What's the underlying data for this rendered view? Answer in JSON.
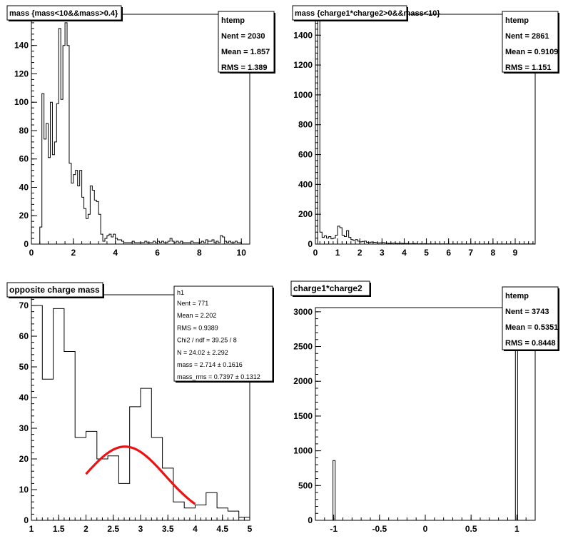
{
  "chart_data": [
    {
      "type": "histogram",
      "title": "mass {mass<10&&mass>0.4}",
      "stats": {
        "name": "htemp",
        "rows": [
          [
            "Nent",
            "2030"
          ],
          [
            "Mean",
            "1.857"
          ],
          [
            "RMS",
            "1.389"
          ]
        ]
      },
      "xlim": [
        0,
        10.4
      ],
      "ylim": [
        0,
        162
      ],
      "xticks": [
        0,
        2,
        4,
        6,
        8,
        10
      ],
      "xtick_labels": [
        "0",
        "2",
        "4",
        "6",
        "8",
        "10"
      ],
      "yticks": [
        0,
        20,
        40,
        60,
        80,
        100,
        120,
        140,
        160
      ],
      "ytick_labels": [
        "0",
        "20",
        "40",
        "60",
        "80",
        "100",
        "120",
        "140",
        "160"
      ],
      "bin_start": 0.4,
      "bin_width": 0.1,
      "values": [
        12,
        106,
        74,
        85,
        61,
        100,
        63,
        72,
        99,
        152,
        102,
        140,
        156,
        140,
        57,
        43,
        49,
        52,
        41,
        52,
        33,
        25,
        18,
        21,
        41,
        38,
        31,
        30,
        21,
        7,
        2,
        4,
        6,
        7,
        5,
        7,
        4,
        3,
        3,
        2,
        1,
        1,
        1,
        1,
        2,
        1,
        1,
        1,
        1,
        1,
        2,
        1,
        1,
        1,
        2,
        1,
        2,
        1,
        2,
        1,
        1,
        2,
        4,
        2,
        1,
        2,
        1,
        2,
        1,
        1,
        1,
        1,
        2,
        1,
        1,
        1,
        1,
        2,
        1,
        3,
        2,
        2,
        3,
        1,
        2,
        1,
        6,
        5,
        2,
        1,
        2,
        1,
        1,
        2,
        1,
        1
      ]
    },
    {
      "type": "histogram",
      "title": "mass {charge1*charge2>0&&mass<10}",
      "stats": {
        "name": "htemp",
        "rows": [
          [
            "Nent",
            "2861"
          ],
          [
            "Mean",
            "0.9109"
          ],
          [
            "RMS",
            "1.151"
          ]
        ]
      },
      "xlim": [
        0,
        9.9
      ],
      "ylim": [
        0,
        1540
      ],
      "xticks": [
        0,
        1,
        2,
        3,
        4,
        5,
        6,
        7,
        8,
        9
      ],
      "xtick_labels": [
        "0",
        "1",
        "2",
        "3",
        "4",
        "5",
        "6",
        "7",
        "8",
        "9"
      ],
      "yticks": [
        0,
        200,
        400,
        600,
        800,
        1000,
        1200,
        1400
      ],
      "ytick_labels": [
        "0",
        "200",
        "400",
        "600",
        "800",
        "1000",
        "1200",
        "1400"
      ],
      "bin_start": 0,
      "bin_width": 0.1,
      "values": [
        0,
        1500,
        80,
        45,
        55,
        40,
        50,
        35,
        40,
        60,
        120,
        110,
        60,
        50,
        90,
        45,
        30,
        25,
        30,
        20,
        15,
        18,
        20,
        12,
        10,
        14,
        12,
        10,
        8,
        9,
        10,
        8,
        6,
        5,
        6,
        7,
        5,
        4,
        6,
        5,
        4,
        4,
        3,
        3,
        4,
        3,
        2,
        3,
        2,
        3,
        2,
        2,
        2,
        2,
        2,
        1,
        2,
        2,
        1,
        2,
        1,
        1,
        2,
        1,
        1,
        1,
        1,
        1,
        1,
        1,
        1,
        1,
        1,
        1,
        1,
        1,
        1,
        1,
        1,
        1,
        1,
        1,
        1,
        1,
        1,
        1,
        1,
        1,
        1,
        1,
        1,
        1,
        1,
        1,
        1,
        1,
        1,
        1,
        1
      ]
    },
    {
      "type": "histogram",
      "title": "opposite charge mass",
      "stats": {
        "name": "h1",
        "rows": [
          [
            "Nent",
            "771"
          ],
          [
            "Mean",
            "2.202"
          ],
          [
            "RMS",
            "0.9389"
          ],
          [
            "Chi2 / ndf",
            "39.25 / 8"
          ],
          [
            "N",
            "24.02 ± 2.292"
          ],
          [
            "mass",
            "2.714 ± 0.1616"
          ],
          [
            "mass_rms",
            "0.7397 ± 0.1312"
          ]
        ]
      },
      "xlim": [
        1,
        5
      ],
      "ylim": [
        0,
        73.5
      ],
      "xticks": [
        1,
        1.5,
        2,
        2.5,
        3,
        3.5,
        4,
        4.5,
        5
      ],
      "xtick_labels": [
        "1",
        "1.5",
        "2",
        "2.5",
        "3",
        "3.5",
        "4",
        "4.5",
        "5"
      ],
      "yticks": [
        0,
        10,
        20,
        30,
        40,
        50,
        60,
        70
      ],
      "ytick_labels": [
        "0",
        "10",
        "20",
        "30",
        "40",
        "50",
        "60",
        "70"
      ],
      "bin_start": 1,
      "bin_width": 0.2,
      "values": [
        70,
        46,
        69,
        55,
        27,
        29,
        20,
        21,
        12,
        37,
        43,
        27,
        17,
        6,
        4,
        5,
        9,
        4,
        3,
        1
      ],
      "fit": {
        "N": 24.02,
        "mean": 2.714,
        "sigma": 0.7397,
        "x_range": [
          2.0,
          4.0
        ],
        "color": "#ee1111"
      }
    },
    {
      "type": "histogram",
      "title": "charge1*charge2",
      "stats": {
        "name": "htemp",
        "rows": [
          [
            "Nent",
            "3743"
          ],
          [
            "Mean",
            "0.5351"
          ],
          [
            "RMS",
            "0.8448"
          ]
        ]
      },
      "xlim": [
        -1.2,
        1.2
      ],
      "ylim": [
        0,
        3060
      ],
      "xticks": [
        -1,
        -0.5,
        0,
        0.5,
        1
      ],
      "xtick_labels": [
        "-1",
        "-0.5",
        "0",
        "0.5",
        "1"
      ],
      "yticks": [
        0,
        500,
        1000,
        1500,
        2000,
        2500,
        3000
      ],
      "ytick_labels": [
        "0",
        "500",
        "1000",
        "1500",
        "2000",
        "2500",
        "3000"
      ],
      "bin_start": -1.2,
      "bin_width": 0.024,
      "values": [
        0,
        0,
        0,
        0,
        0,
        0,
        0,
        0,
        860,
        0,
        0,
        0,
        0,
        0,
        0,
        0,
        0,
        0,
        0,
        0,
        0,
        0,
        0,
        0,
        0,
        0,
        0,
        0,
        0,
        0,
        0,
        0,
        0,
        0,
        0,
        0,
        0,
        0,
        0,
        0,
        0,
        0,
        0,
        0,
        0,
        0,
        0,
        0,
        0,
        0,
        0,
        0,
        0,
        0,
        0,
        0,
        0,
        0,
        0,
        0,
        0,
        0,
        0,
        0,
        0,
        0,
        0,
        0,
        0,
        0,
        0,
        0,
        0,
        0,
        0,
        0,
        0,
        0,
        0,
        0,
        0,
        0,
        0,
        0,
        0,
        0,
        0,
        0,
        0,
        0,
        0,
        2883,
        0,
        0,
        0,
        0,
        0,
        0,
        0,
        0
      ]
    }
  ]
}
